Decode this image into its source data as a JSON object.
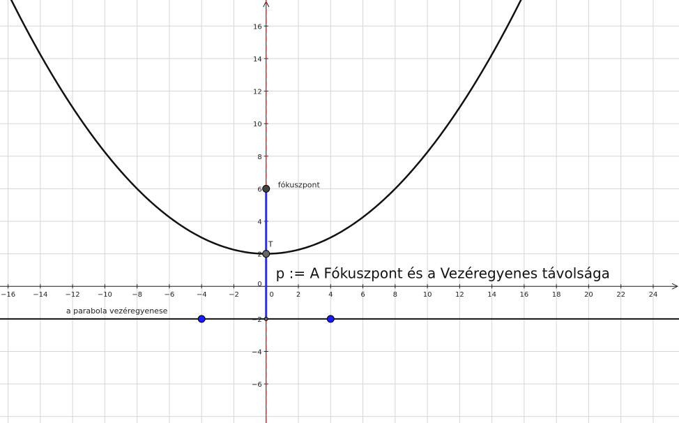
{
  "chart_data": {
    "type": "geometry",
    "xlim": [
      -16.5,
      25.6
    ],
    "ylim": [
      -8.4,
      17.6
    ],
    "grid": true,
    "x_ticks": [
      -16,
      -14,
      -12,
      -10,
      -8,
      -6,
      -4,
      -2,
      0,
      2,
      4,
      6,
      8,
      10,
      12,
      14,
      16,
      18,
      20,
      22,
      24
    ],
    "y_ticks": [
      -6,
      -4,
      -2,
      0,
      2,
      4,
      6,
      8,
      10,
      12,
      14,
      16
    ],
    "parabola": {
      "vertex": [
        0,
        2
      ],
      "focus": [
        0,
        6
      ],
      "directrix_y": -2
    },
    "points": [
      {
        "name": "focus",
        "x": 0,
        "y": 6,
        "color": "#444444",
        "label": "fókuszpont"
      },
      {
        "name": "vertex",
        "x": 0,
        "y": 2,
        "color": "#666666",
        "label": "T"
      },
      {
        "name": "directrix-foot",
        "x": 0,
        "y": -2,
        "color": "#666666",
        "label": ""
      },
      {
        "name": "directrix-point-left",
        "x": -4,
        "y": -2,
        "color": "#1a1aff",
        "label": ""
      },
      {
        "name": "directrix-point-right",
        "x": 4,
        "y": -2,
        "color": "#1a1aff",
        "label": ""
      }
    ],
    "lines": {
      "axis_of_symmetry_color": "#e02020",
      "segment_color": "#3333cc",
      "curve_color": "#111111"
    },
    "annotations": {
      "directrix_label": "a parabola vezéregyenese",
      "distance_text": "p := A Fókuszpont és a Vezéregyenes távolsága"
    }
  }
}
